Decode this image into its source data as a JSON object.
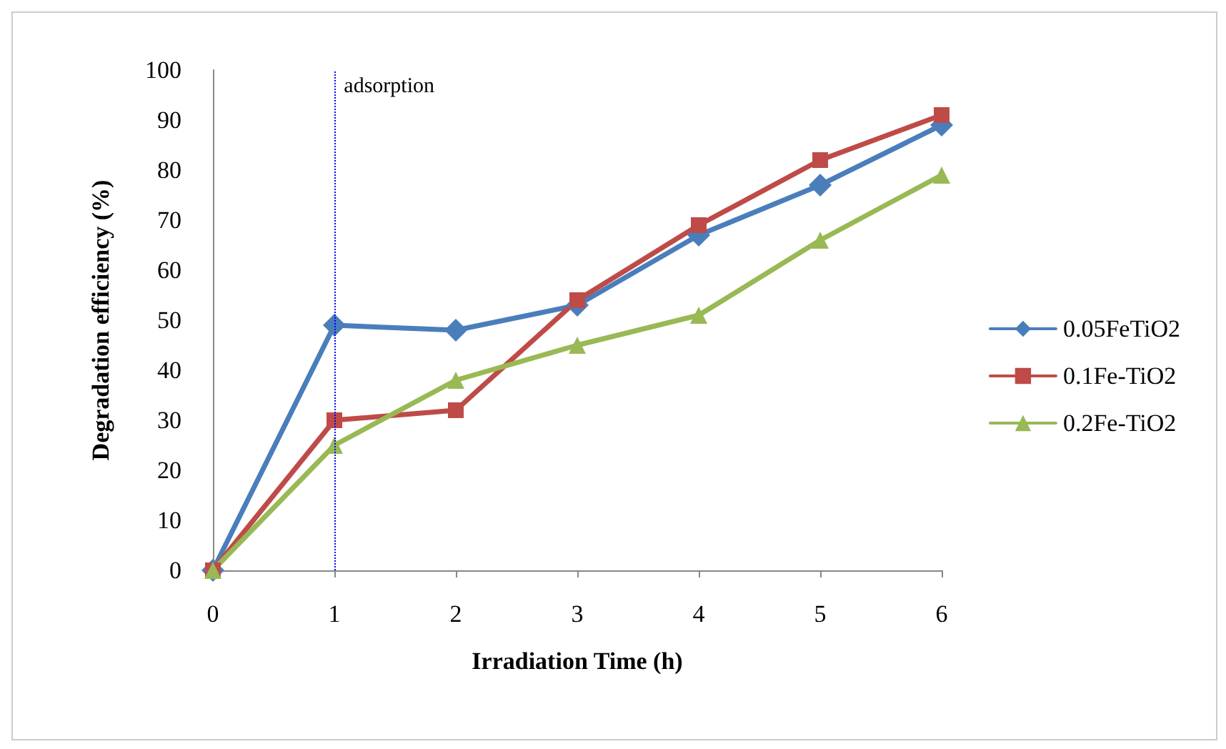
{
  "chart_data": {
    "type": "line",
    "xlabel": "Irradiation Time (h)",
    "ylabel": "Degradation efficiency (%)",
    "x": [
      0,
      1,
      2,
      3,
      4,
      5,
      6
    ],
    "series": [
      {
        "name": "0.05FeTiO2",
        "color": "#4a7ebb",
        "marker": "diamond",
        "values": [
          0,
          49,
          48,
          53,
          67,
          77,
          89
        ]
      },
      {
        "name": "0.1Fe-TiO2",
        "color": "#be4b48",
        "marker": "square",
        "values": [
          0,
          30,
          32,
          54,
          69,
          82,
          91
        ]
      },
      {
        "name": "0.2Fe-TiO2",
        "color": "#98b954",
        "marker": "triangle",
        "values": [
          0,
          25,
          38,
          45,
          51,
          66,
          79
        ]
      }
    ],
    "xlim": [
      0,
      6
    ],
    "xticks": [
      0,
      1,
      2,
      3,
      4,
      5,
      6
    ],
    "ylim": [
      0,
      100
    ],
    "yticks": [
      0,
      10,
      20,
      30,
      40,
      50,
      60,
      70,
      80,
      90,
      100
    ],
    "ref_lines": [
      {
        "axis": "x",
        "value": 1,
        "label": "adsorption",
        "color": "#0000ff",
        "line_style": "dotted"
      }
    ],
    "grid": false,
    "legend": "right",
    "line_style": "solid"
  }
}
